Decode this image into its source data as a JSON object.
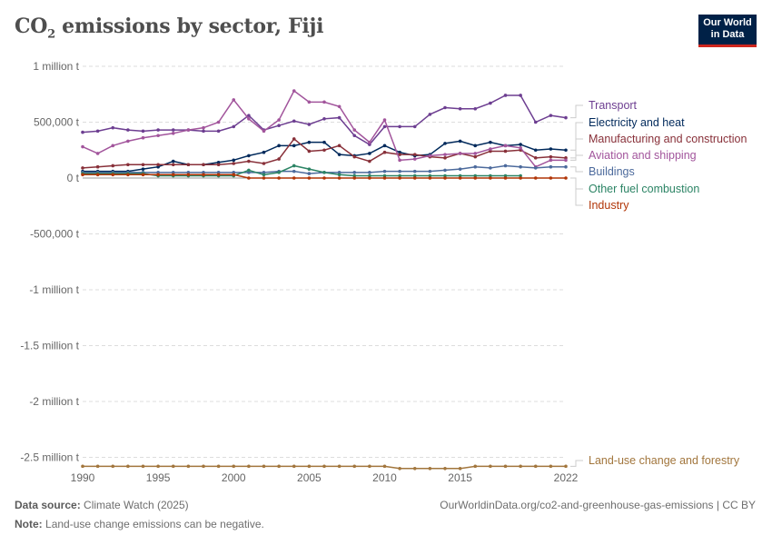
{
  "header": {
    "title_main": "CO",
    "title_sub": "2",
    "title_rest": " emissions by sector, Fiji",
    "logo_line1": "Our World",
    "logo_line2": "in Data"
  },
  "footer": {
    "source_label": "Data source:",
    "source": "Climate Watch (2025)",
    "url": "OurWorldinData.org/co2-and-greenhouse-gas-emissions | CC BY",
    "note_label": "Note:",
    "note": "Land-use change emissions can be negative."
  },
  "chart_data": {
    "type": "line",
    "title": "CO₂ emissions by sector, Fiji",
    "ylabel": "",
    "xlabel": "",
    "ylim": [
      -2600000,
      1000000
    ],
    "xlim": [
      1990,
      2022
    ],
    "grid": "horizontal dashed",
    "legend": "right, end-of-line labels",
    "y_ticks": [
      {
        "v": 1000000,
        "label": "1 million t"
      },
      {
        "v": 500000,
        "label": "500,000 t"
      },
      {
        "v": 0,
        "label": "0 t"
      },
      {
        "v": -500000,
        "label": "-500,000 t"
      },
      {
        "v": -1000000,
        "label": "-1 million t"
      },
      {
        "v": -1500000,
        "label": "-1.5 million t"
      },
      {
        "v": -2000000,
        "label": "-2 million t"
      },
      {
        "v": -2500000,
        "label": "-2.5 million t"
      }
    ],
    "x_ticks": [
      "1990",
      "1995",
      "2000",
      "2005",
      "2010",
      "2015",
      "2022"
    ],
    "x": [
      1990,
      1991,
      1992,
      1993,
      1994,
      1995,
      1996,
      1997,
      1998,
      1999,
      2000,
      2001,
      2002,
      2003,
      2004,
      2005,
      2006,
      2007,
      2008,
      2009,
      2010,
      2011,
      2012,
      2013,
      2014,
      2015,
      2016,
      2017,
      2018,
      2019,
      2020,
      2021,
      2022
    ],
    "series": [
      {
        "name": "Transport",
        "color": "#6d3e91",
        "values": [
          410000,
          420000,
          450000,
          430000,
          420000,
          430000,
          430000,
          430000,
          420000,
          420000,
          460000,
          560000,
          430000,
          470000,
          510000,
          480000,
          530000,
          540000,
          380000,
          300000,
          460000,
          460000,
          460000,
          570000,
          630000,
          620000,
          620000,
          670000,
          740000,
          740000,
          500000,
          560000,
          540000
        ]
      },
      {
        "name": "Electricity and heat",
        "color": "#00295b",
        "values": [
          60000,
          60000,
          60000,
          60000,
          80000,
          100000,
          150000,
          120000,
          120000,
          140000,
          160000,
          200000,
          230000,
          290000,
          290000,
          320000,
          320000,
          210000,
          200000,
          220000,
          290000,
          230000,
          200000,
          210000,
          310000,
          330000,
          290000,
          320000,
          290000,
          300000,
          250000,
          260000,
          250000
        ]
      },
      {
        "name": "Manufacturing and construction",
        "color": "#883039",
        "values": [
          90000,
          100000,
          110000,
          120000,
          120000,
          120000,
          120000,
          120000,
          120000,
          120000,
          130000,
          150000,
          130000,
          170000,
          350000,
          240000,
          250000,
          290000,
          190000,
          150000,
          230000,
          210000,
          210000,
          190000,
          180000,
          220000,
          190000,
          240000,
          240000,
          250000,
          180000,
          190000,
          180000
        ]
      },
      {
        "name": "Aviation and shipping",
        "color": "#a2559c",
        "values": [
          280000,
          220000,
          290000,
          330000,
          360000,
          380000,
          400000,
          430000,
          450000,
          500000,
          700000,
          530000,
          420000,
          520000,
          780000,
          680000,
          680000,
          640000,
          430000,
          320000,
          520000,
          160000,
          170000,
          200000,
          210000,
          220000,
          220000,
          260000,
          290000,
          270000,
          100000,
          160000,
          160000
        ]
      },
      {
        "name": "Buildings",
        "color": "#4c6a9c",
        "values": [
          50000,
          50000,
          50000,
          50000,
          50000,
          50000,
          50000,
          50000,
          50000,
          50000,
          50000,
          50000,
          50000,
          60000,
          60000,
          40000,
          50000,
          50000,
          50000,
          50000,
          60000,
          60000,
          60000,
          60000,
          70000,
          80000,
          100000,
          90000,
          110000,
          100000,
          90000,
          100000,
          100000
        ]
      },
      {
        "name": "Other fuel combustion",
        "color": "#2c8465",
        "values": [
          40000,
          40000,
          40000,
          40000,
          40000,
          20000,
          20000,
          20000,
          20000,
          20000,
          20000,
          70000,
          30000,
          50000,
          110000,
          80000,
          50000,
          30000,
          20000,
          20000,
          20000,
          20000,
          20000,
          20000,
          20000,
          20000,
          20000,
          20000,
          20000,
          20000,
          null,
          null,
          null
        ]
      },
      {
        "name": "Industry",
        "color": "#b13507",
        "values": [
          30000,
          30000,
          30000,
          30000,
          30000,
          30000,
          30000,
          30000,
          30000,
          30000,
          30000,
          0,
          0,
          0,
          0,
          0,
          0,
          0,
          0,
          0,
          0,
          0,
          0,
          0,
          0,
          0,
          0,
          0,
          0,
          0,
          0,
          0,
          0
        ]
      },
      {
        "name": "Land-use change and forestry",
        "color": "#a2763d",
        "values": [
          -2580000,
          -2580000,
          -2580000,
          -2580000,
          -2580000,
          -2580000,
          -2580000,
          -2580000,
          -2580000,
          -2580000,
          -2580000,
          -2580000,
          -2580000,
          -2580000,
          -2580000,
          -2580000,
          -2580000,
          -2580000,
          -2580000,
          -2580000,
          -2580000,
          -2600000,
          -2600000,
          -2600000,
          -2600000,
          -2600000,
          -2580000,
          -2580000,
          -2580000,
          -2580000,
          -2580000,
          -2580000,
          -2580000
        ]
      }
    ]
  }
}
